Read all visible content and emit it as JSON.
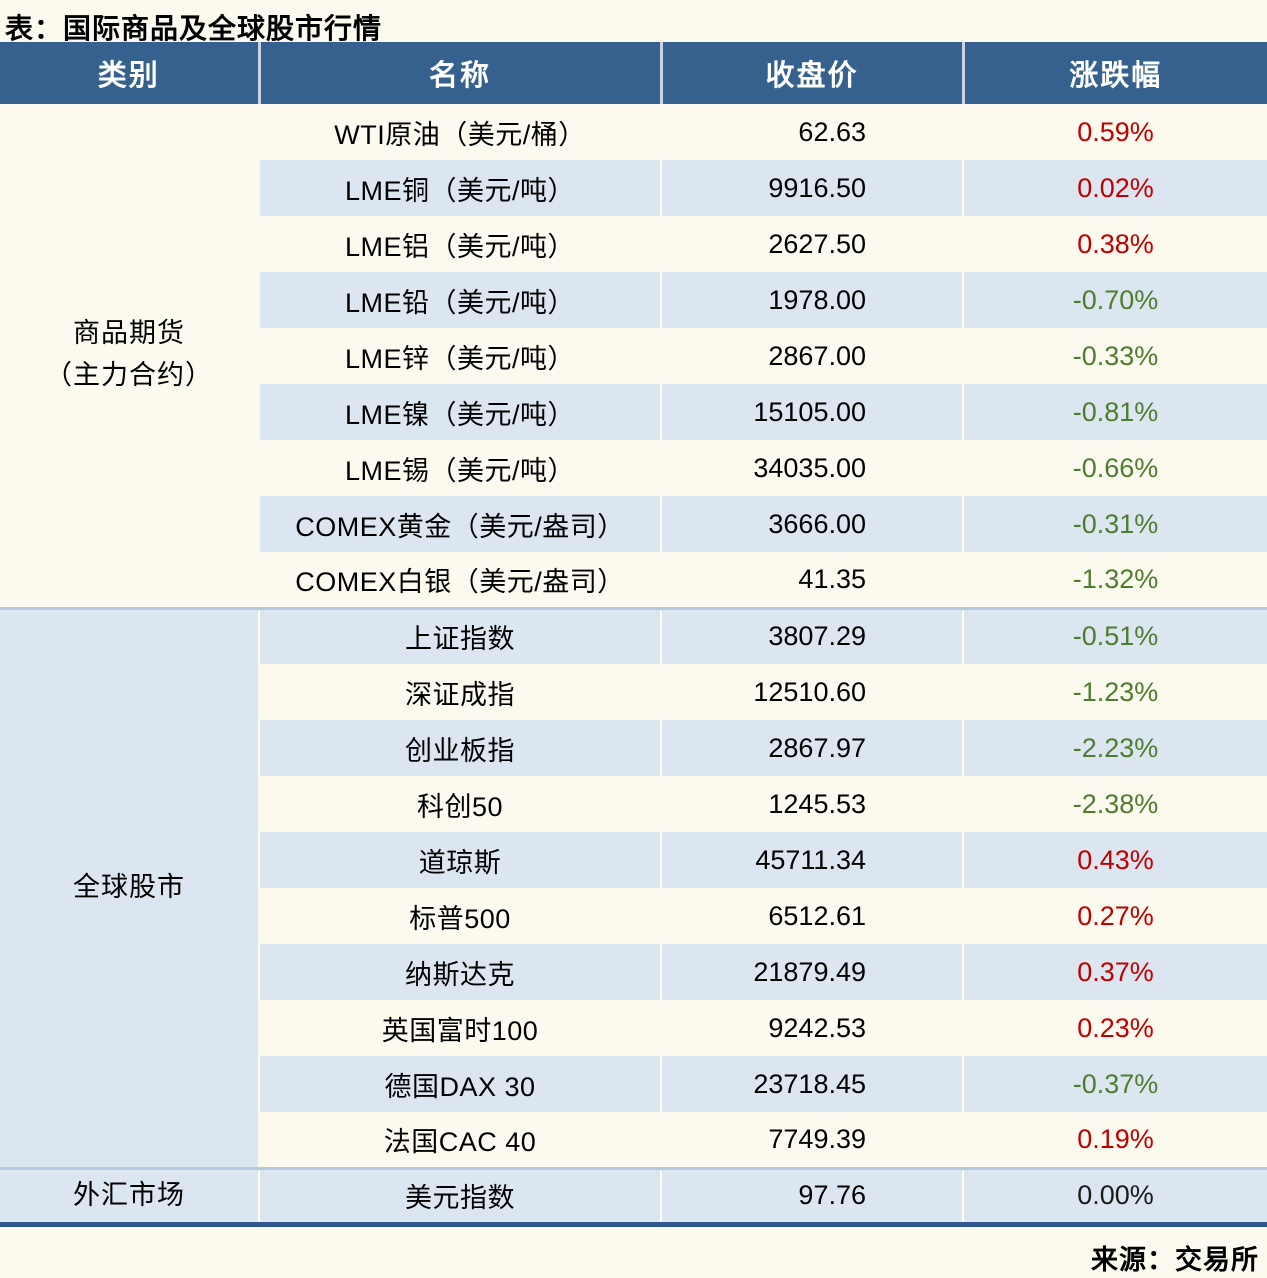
{
  "title": "表：国际商品及全球股市行情",
  "source": "来源：交易所",
  "colors": {
    "header_bg": "#36618f",
    "header_text": "#ffffff",
    "row_alt_bg": "#dce6f0",
    "page_bg": "#fcfaef",
    "up_red": "#c00000",
    "down_green": "#4e7d2e",
    "flat_black": "#1a1a1a",
    "block_separator": "#b7c9de",
    "bottom_border": "#30588a"
  },
  "table": {
    "headers": [
      "类别",
      "名称",
      "收盘价",
      "涨跌幅"
    ],
    "groups": [
      {
        "category": [
          "商品期货",
          "（主力合约）"
        ],
        "rows": [
          {
            "name": "WTI原油（美元/桶）",
            "close": "62.63",
            "change": "0.59%"
          },
          {
            "name": "LME铜（美元/吨）",
            "close": "9916.50",
            "change": "0.02%"
          },
          {
            "name": "LME铝（美元/吨）",
            "close": "2627.50",
            "change": "0.38%"
          },
          {
            "name": "LME铅（美元/吨）",
            "close": "1978.00",
            "change": "-0.70%"
          },
          {
            "name": "LME锌（美元/吨）",
            "close": "2867.00",
            "change": "-0.33%"
          },
          {
            "name": "LME镍（美元/吨）",
            "close": "15105.00",
            "change": "-0.81%"
          },
          {
            "name": "LME锡（美元/吨）",
            "close": "34035.00",
            "change": "-0.66%"
          },
          {
            "name": "COMEX黄金（美元/盎司）",
            "close": "3666.00",
            "change": "-0.31%"
          },
          {
            "name": "COMEX白银（美元/盎司）",
            "close": "41.35",
            "change": "-1.32%"
          }
        ]
      },
      {
        "category": [
          "全球股市"
        ],
        "rows": [
          {
            "name": "上证指数",
            "close": "3807.29",
            "change": "-0.51%"
          },
          {
            "name": "深证成指",
            "close": "12510.60",
            "change": "-1.23%"
          },
          {
            "name": "创业板指",
            "close": "2867.97",
            "change": "-2.23%"
          },
          {
            "name": "科创50",
            "close": "1245.53",
            "change": "-2.38%"
          },
          {
            "name": "道琼斯",
            "close": "45711.34",
            "change": "0.43%"
          },
          {
            "name": "标普500",
            "close": "6512.61",
            "change": "0.27%"
          },
          {
            "name": "纳斯达克",
            "close": "21879.49",
            "change": "0.37%"
          },
          {
            "name": "英国富时100",
            "close": "9242.53",
            "change": "0.23%"
          },
          {
            "name": "德国DAX 30",
            "close": "23718.45",
            "change": "-0.37%"
          },
          {
            "name": "法国CAC 40",
            "close": "7749.39",
            "change": "0.19%"
          }
        ]
      },
      {
        "category": [
          "外汇市场"
        ],
        "rows": [
          {
            "name": "美元指数",
            "close": "97.76",
            "change": "0.00%"
          }
        ]
      }
    ]
  }
}
